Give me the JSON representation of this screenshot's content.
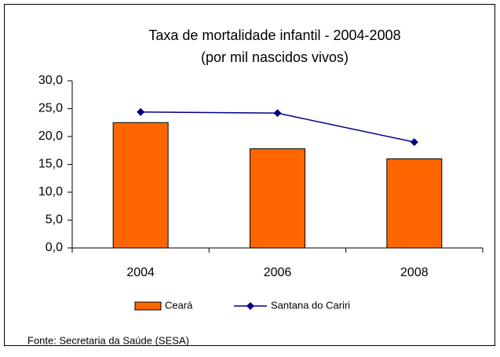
{
  "chart_data": {
    "type": "bar",
    "title": "Taxa de mortalidade infantil - 2004-2008",
    "subtitle": "(por mil nascidos vivos)",
    "categories": [
      "2004",
      "2006",
      "2008"
    ],
    "series": [
      {
        "name": "Ceará",
        "type": "bar",
        "color": "#ff6600",
        "values": [
          22.5,
          17.8,
          16.0
        ]
      },
      {
        "name": "Santana do Cariri",
        "type": "line",
        "color": "#000080",
        "values": [
          24.4,
          24.2,
          19.0
        ]
      }
    ],
    "ylim": [
      0,
      30
    ],
    "yticks": [
      {
        "value": 0,
        "label": "0,0"
      },
      {
        "value": 5,
        "label": "5,0"
      },
      {
        "value": 10,
        "label": "10,0"
      },
      {
        "value": 15,
        "label": "15,0"
      },
      {
        "value": 20,
        "label": "20,0"
      },
      {
        "value": 25,
        "label": "25,0"
      },
      {
        "value": 30,
        "label": "30,0"
      }
    ],
    "grid": false,
    "legend": "bottom",
    "source": "Fonte: Secretaria da Saúde (SESA)"
  }
}
